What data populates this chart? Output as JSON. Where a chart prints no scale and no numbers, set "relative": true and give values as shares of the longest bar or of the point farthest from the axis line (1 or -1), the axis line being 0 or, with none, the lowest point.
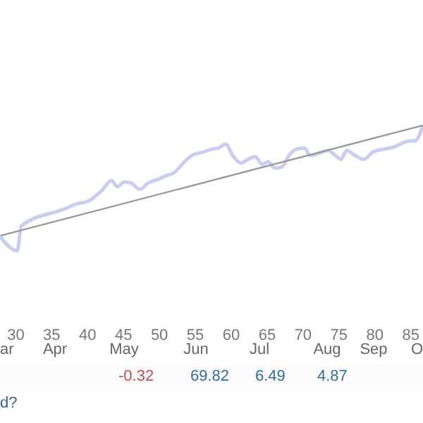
{
  "chart_data": {
    "type": "line",
    "relative": true,
    "xlim": [
      27.8,
      86.7
    ],
    "xticks": [
      30,
      35,
      40,
      45,
      50,
      55,
      60,
      65,
      70,
      75,
      80,
      85
    ],
    "series": [
      {
        "color": "#c9cdf0",
        "x": [
          27.84,
          30.2,
          30.78,
          37.06,
          38.24,
          40.2,
          41.96,
          43.33,
          44.12,
          45.1,
          46.08,
          47.25,
          48.43,
          49.8,
          50.98,
          51.96,
          53.33,
          54.51,
          56.27,
          57.25,
          58.24,
          59.22,
          60.2,
          61.37,
          62.35,
          63.33,
          64.31,
          65.1,
          66.08,
          67.06,
          68.04,
          69.02,
          70.2,
          70.98,
          72.35,
          73.53,
          74.51,
          75.29,
          76.08,
          77.25,
          78.43,
          79.8,
          81.18,
          82.75,
          84.31,
          85.69,
          86.67
        ],
        "values": [
          0.11,
          0,
          0.2,
          0.34,
          0.37,
          0.4,
          0.48,
          0.56,
          0.51,
          0.55,
          0.54,
          0.49,
          0.54,
          0.57,
          0.6,
          0.62,
          0.7,
          0.76,
          0.79,
          0.81,
          0.82,
          0.85,
          0.76,
          0.7,
          0.73,
          0.75,
          0.69,
          0.71,
          0.66,
          0.67,
          0.76,
          0.81,
          0.82,
          0.76,
          0.78,
          0.8,
          0.76,
          0.73,
          0.8,
          0.76,
          0.73,
          0.79,
          0.81,
          0.83,
          0.87,
          0.88,
          1
        ]
      },
      {
        "color": "#999999",
        "x": [
          27.84,
          86.67
        ],
        "values": [
          0.12,
          1
        ]
      }
    ],
    "annotations": [
      "ar",
      "Apr",
      "May",
      "Jun",
      "Jul",
      "Aug",
      "Sep",
      "O",
      "-0.32",
      "69.82",
      "6.49",
      "4.87",
      "d?"
    ]
  }
}
